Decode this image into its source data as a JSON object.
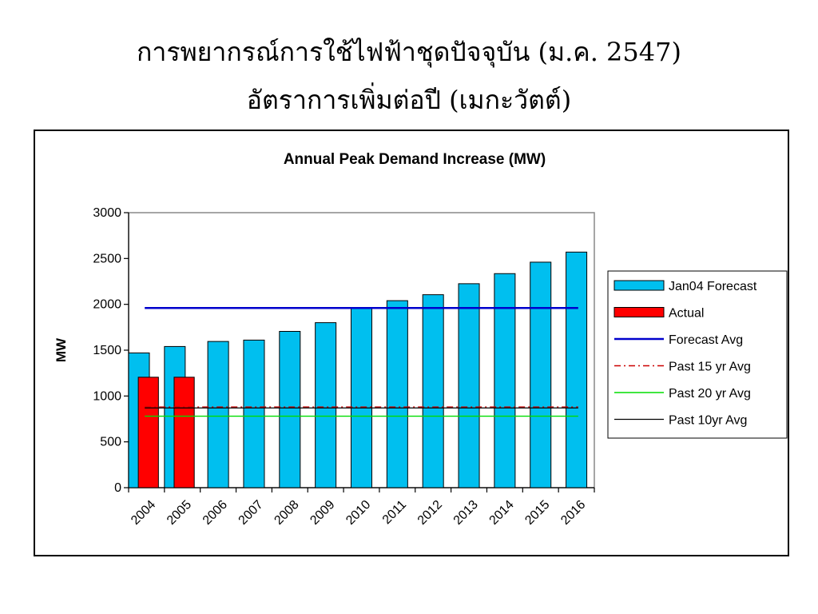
{
  "slide": {
    "title_line1": "การพยากรณ์การใช้ไฟฟ้าชุดปัจจุบัน (ม.ค. 2547)",
    "title_line2": "อัตราการเพิ่มต่อปี (เมกะวัตต์)"
  },
  "chart_data": {
    "type": "bar",
    "title": "Annual Peak Demand Increase (MW)",
    "xlabel": "",
    "ylabel": "MW",
    "ylim": [
      0,
      3000
    ],
    "yticks": [
      0,
      500,
      1000,
      1500,
      2000,
      2500,
      3000
    ],
    "categories": [
      "2004",
      "2005",
      "2006",
      "2007",
      "2008",
      "2009",
      "2010",
      "2011",
      "2012",
      "2013",
      "2014",
      "2015",
      "2016"
    ],
    "grid": false,
    "legend_position": "right",
    "series": [
      {
        "name": "Jan04 Forecast",
        "kind": "bar",
        "color": "#00BFEF",
        "values": [
          1470,
          1540,
          1595,
          1610,
          1705,
          1800,
          1960,
          2040,
          2105,
          2225,
          2335,
          2460,
          2570
        ]
      },
      {
        "name": "Actual",
        "kind": "bar",
        "color": "#FF0000",
        "values": [
          1205,
          1205,
          null,
          null,
          null,
          null,
          null,
          null,
          null,
          null,
          null,
          null,
          null
        ]
      },
      {
        "name": "Forecast Avg",
        "kind": "line",
        "style": "solid",
        "color": "#0000CC",
        "value": 1960
      },
      {
        "name": "Past 15 yr Avg",
        "kind": "line",
        "style": "dashdot",
        "color": "#CC0000",
        "value": 880
      },
      {
        "name": "Past 20 yr Avg",
        "kind": "line",
        "style": "solid",
        "color": "#00DD00",
        "value": 780
      },
      {
        "name": "Past 10yr Avg",
        "kind": "line",
        "style": "solid",
        "color": "#000000",
        "value": 870
      }
    ]
  }
}
